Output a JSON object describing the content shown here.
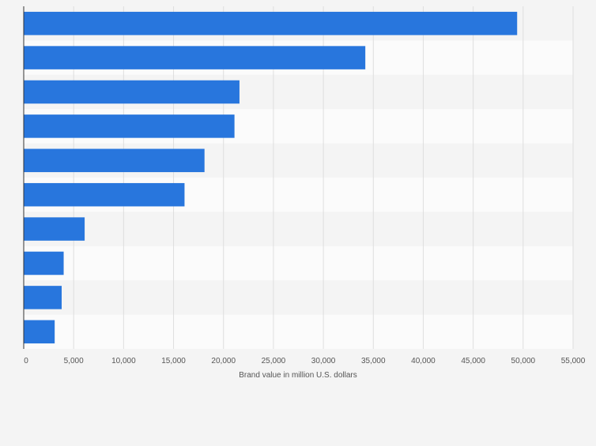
{
  "chart_data": {
    "type": "bar",
    "orientation": "horizontal",
    "title": "",
    "xlabel": "Brand value in million U.S. dollars",
    "ylabel": "",
    "xlim": [
      0,
      55000
    ],
    "xticks": [
      0,
      5000,
      10000,
      15000,
      20000,
      25000,
      30000,
      35000,
      40000,
      45000,
      50000,
      55000
    ],
    "xtick_labels": [
      "0",
      "5,000",
      "10,000",
      "15,000",
      "20,000",
      "25,000",
      "30,000",
      "35,000",
      "40,000",
      "45,000",
      "50,000",
      "55,000"
    ],
    "categories": [
      "",
      "",
      "",
      "",
      "",
      "",
      "",
      "",
      "",
      ""
    ],
    "values": [
      49400,
      34200,
      21600,
      21100,
      18100,
      16100,
      6100,
      4000,
      3800,
      3100
    ],
    "bar_color": "#2876dd",
    "grid": true,
    "legend": "none"
  }
}
